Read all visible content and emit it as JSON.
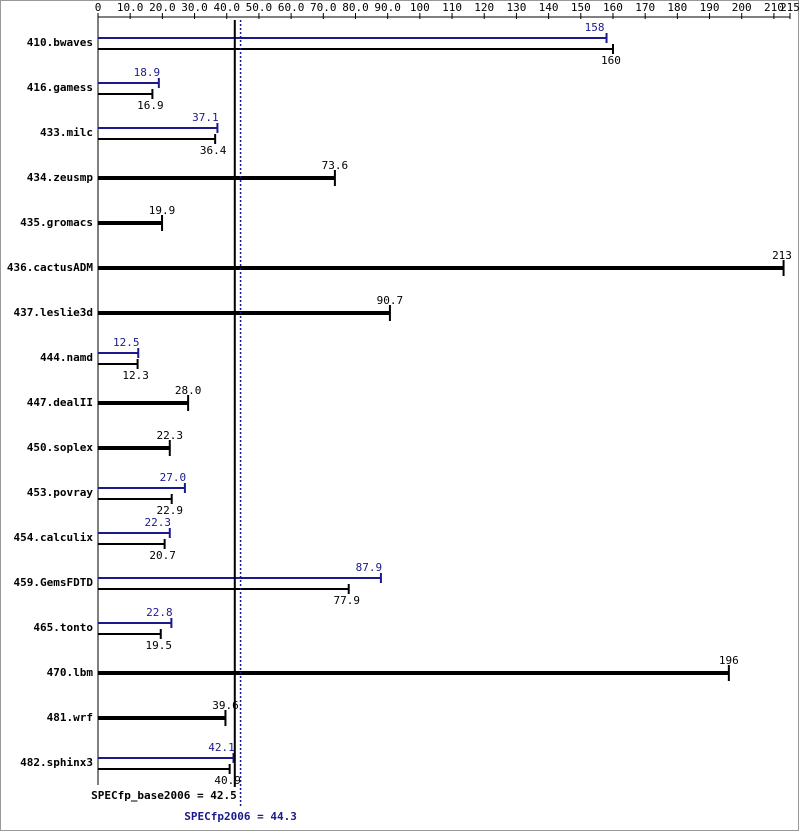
{
  "chart_data": {
    "type": "bar",
    "orientation": "horizontal",
    "categories": [
      "410.bwaves",
      "416.gamess",
      "433.milc",
      "434.zeusmp",
      "435.gromacs",
      "436.cactusADM",
      "437.leslie3d",
      "444.namd",
      "447.dealII",
      "450.soplex",
      "453.povray",
      "454.calculix",
      "459.GemsFDTD",
      "465.tonto",
      "470.lbm",
      "481.wrf",
      "482.sphinx3"
    ],
    "series": [
      {
        "color": "#1a1a8c",
        "values": [
          158,
          18.9,
          37.1,
          null,
          null,
          null,
          null,
          12.5,
          null,
          null,
          27.0,
          22.3,
          87.9,
          22.8,
          null,
          null,
          42.1
        ],
        "value_labels": [
          "158",
          "18.9",
          "37.1",
          null,
          null,
          null,
          null,
          "12.5",
          null,
          null,
          "27.0",
          "22.3",
          "87.9",
          "22.8",
          null,
          null,
          "42.1"
        ]
      },
      {
        "color": "#000000",
        "values": [
          160,
          16.9,
          36.4,
          73.6,
          19.9,
          213,
          90.7,
          12.3,
          28.0,
          22.3,
          22.9,
          20.7,
          77.9,
          19.5,
          196,
          39.6,
          40.9
        ],
        "value_labels": [
          "160",
          "16.9",
          "36.4",
          "73.6",
          "19.9",
          "213",
          "90.7",
          "12.3",
          "28.0",
          "22.3",
          "22.9",
          "20.7",
          "77.9",
          "19.5",
          "196",
          "39.6",
          "40.9"
        ]
      }
    ],
    "xlim": [
      0,
      215
    ],
    "xticks": [
      0,
      {
        "value": 10,
        "label": "10.0"
      },
      {
        "value": 20,
        "label": "20.0"
      },
      {
        "value": 30,
        "label": "30.0"
      },
      {
        "value": 40,
        "label": "40.0"
      },
      {
        "value": 50,
        "label": "50.0"
      },
      {
        "value": 60,
        "label": "60.0"
      },
      {
        "value": 70,
        "label": "70.0"
      },
      {
        "value": 80,
        "label": "80.0"
      },
      {
        "value": 90,
        "label": "90.0"
      },
      {
        "value": 100,
        "label": "100"
      },
      110,
      120,
      130,
      140,
      150,
      160,
      170,
      180,
      190,
      200,
      210,
      215
    ],
    "reference_lines": [
      {
        "value": 42.5,
        "label": "SPECfp_base2006 = 42.5",
        "color": "#000000",
        "style": "solid"
      },
      {
        "value": 44.3,
        "label": "SPECfp2006 = 44.3",
        "color": "#1a1a8c",
        "style": "dotted"
      }
    ]
  }
}
